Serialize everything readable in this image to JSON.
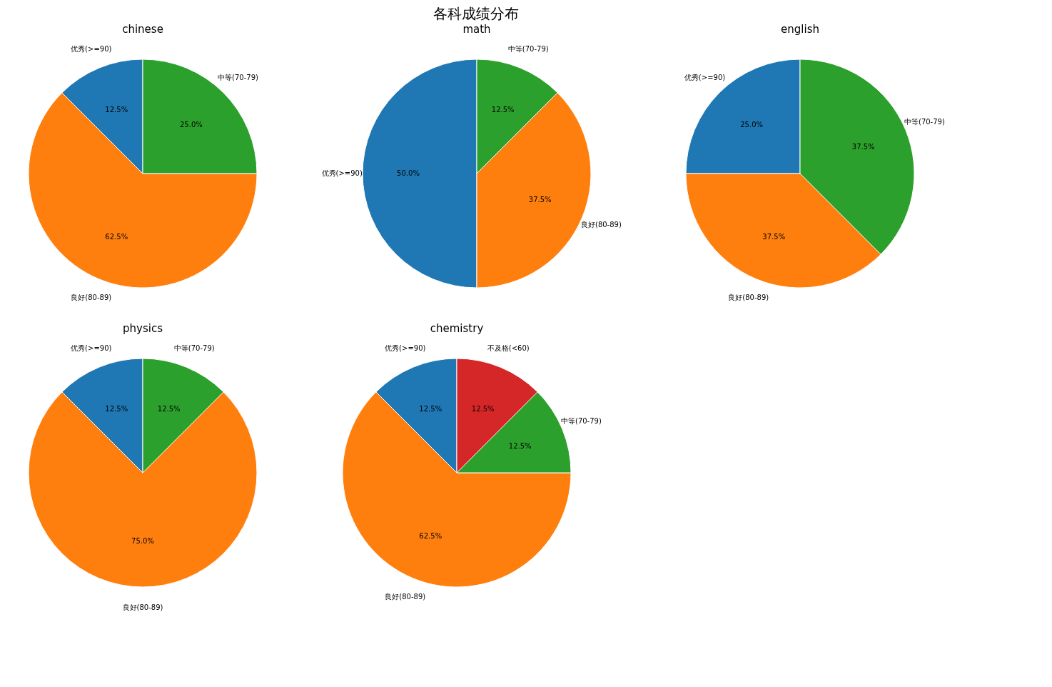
{
  "chart_data": [
    {
      "type": "pie",
      "title": "chinese",
      "annotations": [
        "各科成绩分布"
      ],
      "categories": [
        "优秀(>=90)",
        "良好(80-89)",
        "中等(70-79)"
      ],
      "values": [
        12.5,
        62.5,
        25.0
      ],
      "colors": [
        "#1f77b4",
        "#ff7f0e",
        "#2ca02c"
      ],
      "value_labels": [
        "12.5%",
        "62.5%",
        "25.0%"
      ]
    },
    {
      "type": "pie",
      "title": "math",
      "categories": [
        "优秀(>=90)",
        "良好(80-89)",
        "中等(70-79)"
      ],
      "values": [
        50.0,
        37.5,
        12.5
      ],
      "colors": [
        "#1f77b4",
        "#ff7f0e",
        "#2ca02c"
      ],
      "value_labels": [
        "50.0%",
        "37.5%",
        "12.5%"
      ]
    },
    {
      "type": "pie",
      "title": "english",
      "categories": [
        "优秀(>=90)",
        "良好(80-89)",
        "中等(70-79)"
      ],
      "values": [
        25.0,
        37.5,
        37.5
      ],
      "colors": [
        "#1f77b4",
        "#ff7f0e",
        "#2ca02c"
      ],
      "value_labels": [
        "25.0%",
        "37.5%",
        "37.5%"
      ]
    },
    {
      "type": "pie",
      "title": "physics",
      "categories": [
        "优秀(>=90)",
        "良好(80-89)",
        "中等(70-79)"
      ],
      "values": [
        12.5,
        75.0,
        12.5
      ],
      "colors": [
        "#1f77b4",
        "#ff7f0e",
        "#2ca02c"
      ],
      "value_labels": [
        "12.5%",
        "75.0%",
        "12.5%"
      ]
    },
    {
      "type": "pie",
      "title": "chemistry",
      "categories": [
        "优秀(>=90)",
        "良好(80-89)",
        "中等(70-79)",
        "不及格(<60)"
      ],
      "values": [
        12.5,
        62.5,
        12.5,
        12.5
      ],
      "colors": [
        "#1f77b4",
        "#ff7f0e",
        "#2ca02c",
        "#d62728"
      ],
      "value_labels": [
        "12.5%",
        "62.5%",
        "12.5%",
        "12.5%"
      ]
    }
  ]
}
